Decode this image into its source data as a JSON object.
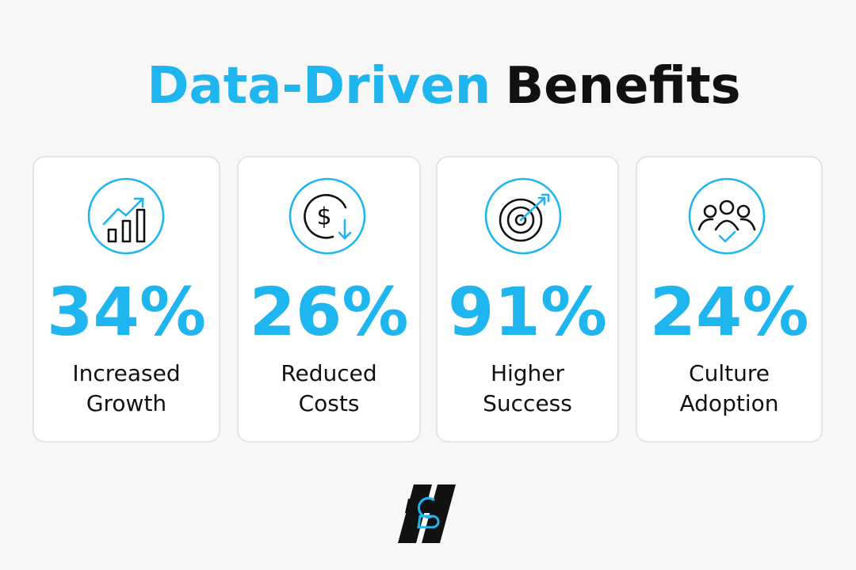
{
  "header": {
    "title_highlight": "Data-Driven",
    "title_rest": "Benefits"
  },
  "cards": [
    {
      "stat": "34%",
      "label_lines": [
        "Increased",
        "Growth"
      ]
    },
    {
      "stat": "26%",
      "label_lines": [
        "Reduced",
        "Costs"
      ]
    },
    {
      "stat": "91%",
      "label_lines": [
        "Higher",
        "Success"
      ]
    },
    {
      "stat": "24%",
      "label_lines": [
        "Culture",
        "Adoption"
      ]
    }
  ]
}
